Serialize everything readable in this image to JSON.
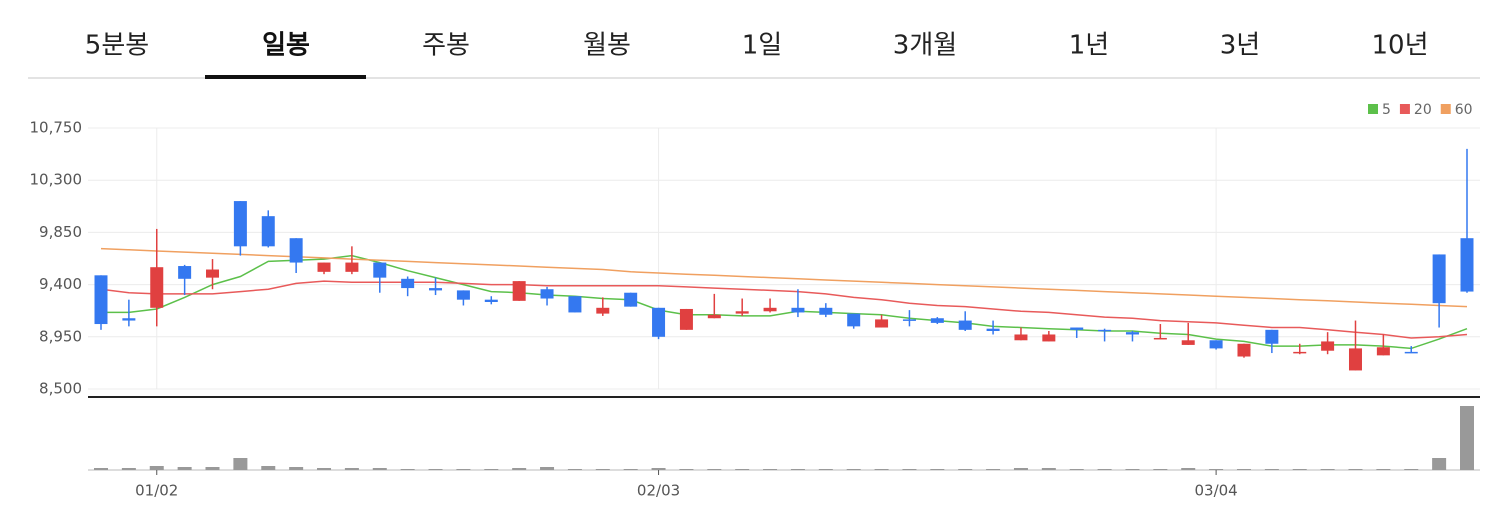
{
  "chart_data": {
    "type": "candlestick",
    "tabs": [
      "5분봉",
      "일봉",
      "주봉",
      "월봉",
      "1일",
      "3개월",
      "1년",
      "3년",
      "10년"
    ],
    "active_tab": 1,
    "categories": [
      null,
      null,
      "01/02",
      null,
      null,
      null,
      null,
      null,
      null,
      null,
      null,
      null,
      null,
      null,
      null,
      null,
      null,
      null,
      null,
      null,
      "02/03",
      null,
      null,
      null,
      null,
      null,
      null,
      null,
      null,
      null,
      null,
      null,
      null,
      null,
      null,
      null,
      null,
      null,
      null,
      null,
      "03/04",
      null,
      null,
      null,
      null,
      null,
      null,
      null,
      null,
      null
    ],
    "open": [
      9480,
      9110,
      9200,
      9560,
      9460,
      10120,
      9990,
      9800,
      9510,
      9510,
      9590,
      9450,
      9370,
      9350,
      9270,
      9260,
      9360,
      9300,
      9150,
      9330,
      9200,
      9010,
      9110,
      9150,
      9170,
      9200,
      9200,
      9150,
      9030,
      9100,
      9110,
      9090,
      9020,
      8920,
      8910,
      9030,
      9010,
      8990,
      8930,
      8880,
      8920,
      8780,
      9010,
      8810,
      8830,
      8660,
      8790,
      8820,
      9660,
      9800
    ],
    "high": [
      9480,
      9270,
      9880,
      9570,
      9620,
      10120,
      10040,
      9800,
      9590,
      9730,
      9590,
      9470,
      9460,
      9350,
      9300,
      9430,
      9380,
      9300,
      9290,
      9330,
      9200,
      9190,
      9320,
      9280,
      9280,
      9360,
      9240,
      9150,
      9140,
      9180,
      9120,
      9170,
      9090,
      9030,
      9000,
      9030,
      9020,
      9000,
      9060,
      9070,
      8920,
      8890,
      9010,
      8890,
      8990,
      9090,
      8970,
      8870,
      9660,
      10570
    ],
    "low": [
      9010,
      9040,
      9040,
      9310,
      9360,
      9650,
      9720,
      9500,
      9490,
      9490,
      9330,
      9300,
      9310,
      9220,
      9230,
      9260,
      9220,
      9160,
      9130,
      9210,
      8930,
      9010,
      9110,
      9130,
      9160,
      9120,
      9120,
      9020,
      9030,
      9040,
      9060,
      9000,
      8970,
      8920,
      8910,
      8940,
      8910,
      8910,
      8930,
      8880,
      8840,
      8770,
      8810,
      8800,
      8800,
      8660,
      8790,
      8810,
      9030,
      9330
    ],
    "close": [
      9060,
      9090,
      9550,
      9450,
      9530,
      9730,
      9730,
      9590,
      9590,
      9590,
      9460,
      9370,
      9350,
      9270,
      9250,
      9430,
      9280,
      9160,
      9200,
      9210,
      8950,
      9190,
      9140,
      9170,
      9200,
      9160,
      9140,
      9040,
      9100,
      9090,
      9070,
      9010,
      9000,
      8970,
      8970,
      9010,
      9000,
      8970,
      8940,
      8920,
      8850,
      8890,
      8890,
      8820,
      8910,
      8850,
      8860,
      8810,
      9240,
      9340
    ],
    "up_color": "#e04040",
    "down_color": "#3478f0",
    "volume": [
      2,
      2,
      4,
      3,
      3,
      12,
      4,
      3,
      2,
      2,
      2,
      1,
      1,
      1,
      1,
      2,
      3,
      1,
      1,
      1,
      2,
      1,
      1,
      1,
      1,
      1,
      1,
      1,
      1,
      1,
      1,
      1,
      1,
      2,
      2,
      1,
      1,
      1,
      1,
      2,
      1,
      1,
      1,
      1,
      1,
      1,
      1,
      1,
      12,
      64
    ],
    "volume_ylim": [
      0,
      70
    ],
    "volume_color": "#999999",
    "moving_averages": [
      {
        "name": "5",
        "color": "#5cc04a",
        "values": [
          9160,
          9160,
          9190,
          9290,
          9400,
          9470,
          9600,
          9610,
          9620,
          9650,
          9590,
          9520,
          9460,
          9400,
          9340,
          9330,
          9310,
          9300,
          9280,
          9270,
          9180,
          9140,
          9140,
          9130,
          9130,
          9170,
          9160,
          9150,
          9140,
          9110,
          9090,
          9070,
          9040,
          9030,
          9020,
          9010,
          9000,
          9000,
          8980,
          8970,
          8930,
          8910,
          8870,
          8870,
          8880,
          8880,
          8870,
          8850,
          8930,
          9020
        ]
      },
      {
        "name": "20",
        "color": "#e85a5a",
        "values": [
          9360,
          9330,
          9320,
          9320,
          9320,
          9340,
          9360,
          9410,
          9430,
          9420,
          9420,
          9420,
          9420,
          9410,
          9400,
          9400,
          9390,
          9390,
          9390,
          9390,
          9390,
          9380,
          9370,
          9360,
          9350,
          9340,
          9320,
          9290,
          9270,
          9240,
          9220,
          9210,
          9190,
          9170,
          9160,
          9140,
          9120,
          9110,
          9090,
          9080,
          9070,
          9050,
          9030,
          9030,
          9010,
          8990,
          8970,
          8940,
          8950,
          8970
        ]
      },
      {
        "name": "60",
        "color": "#f0a060",
        "values": [
          9710,
          9700,
          9690,
          9680,
          9670,
          9660,
          9650,
          9640,
          9630,
          9620,
          9610,
          9600,
          9590,
          9580,
          9570,
          9560,
          9550,
          9540,
          9530,
          9510,
          9500,
          9490,
          9480,
          9470,
          9460,
          9450,
          9440,
          9430,
          9420,
          9410,
          9400,
          9390,
          9380,
          9370,
          9360,
          9350,
          9340,
          9330,
          9320,
          9310,
          9300,
          9290,
          9280,
          9270,
          9260,
          9250,
          9240,
          9230,
          9220,
          9210
        ]
      }
    ],
    "ylim": [
      8500,
      10750
    ],
    "yticks": [
      {
        "value": 10750,
        "label": "10,750"
      },
      {
        "value": 10300,
        "label": "10,300"
      },
      {
        "value": 9850,
        "label": "9,850"
      },
      {
        "value": 9400,
        "label": "9,400"
      },
      {
        "value": 8950,
        "label": "8,950"
      },
      {
        "value": 8500,
        "label": "8,500"
      }
    ],
    "grid": true
  }
}
